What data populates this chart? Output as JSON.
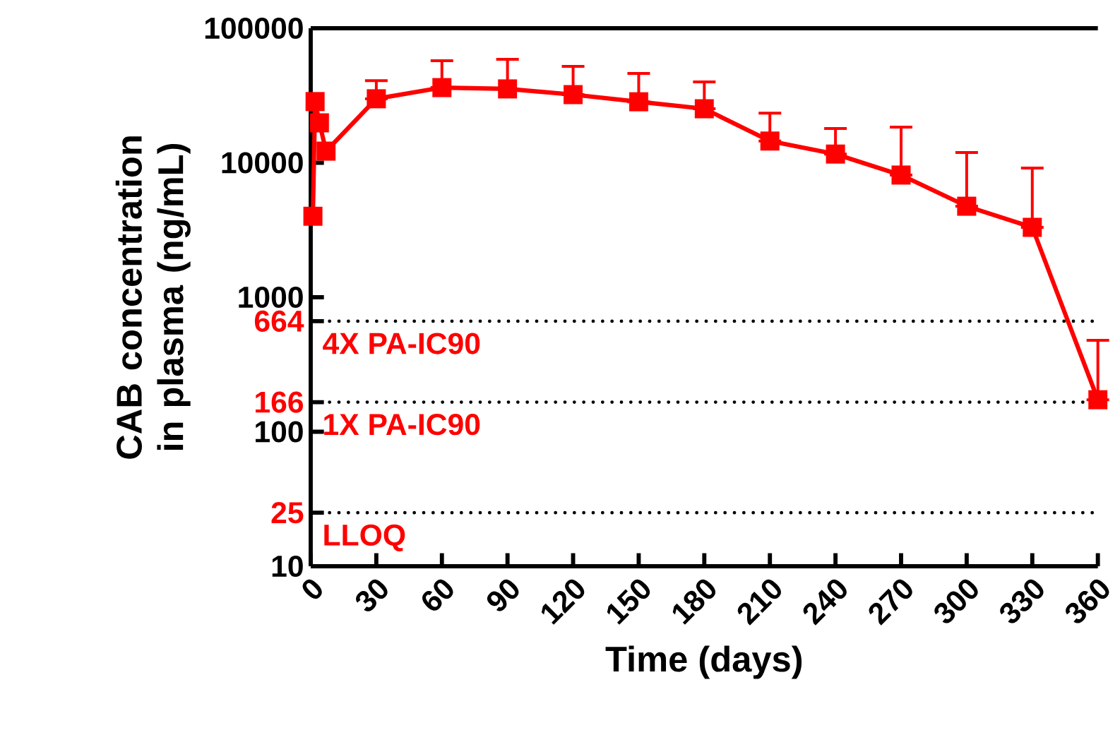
{
  "chart_data": {
    "type": "line",
    "xlabel": "Time (days)",
    "ylabel": "CAB concentration in plasma (ng/mL)",
    "log": "y",
    "marker": "square",
    "line_style": "solid",
    "xlim": [
      0,
      360
    ],
    "xticks": [
      0,
      30,
      60,
      90,
      120,
      150,
      180,
      210,
      240,
      270,
      300,
      330,
      360
    ],
    "ylim": [
      10,
      100000
    ],
    "yticks": [
      10,
      25,
      100,
      166,
      664,
      1000,
      10000,
      100000
    ],
    "series": [
      {
        "color": "#ff0000",
        "x": [
          1,
          2,
          4,
          7,
          30,
          60,
          90,
          120,
          150,
          180,
          210,
          240,
          270,
          300,
          330,
          360
        ],
        "values": [
          4000,
          28500,
          19800,
          12200,
          29900,
          36200,
          35400,
          32100,
          28400,
          25200,
          14500,
          11600,
          8100,
          4750,
          3310,
          173
        ],
        "errors": [
          null,
          null,
          null,
          null,
          [
            29900,
            40800
          ],
          [
            36200,
            57300
          ],
          [
            35400,
            58700
          ],
          [
            32100,
            52100
          ],
          [
            28400,
            46100
          ],
          [
            25200,
            39900
          ],
          [
            14500,
            23400
          ],
          [
            11600,
            18000
          ],
          [
            8100,
            18400
          ],
          [
            4750,
            11900
          ],
          [
            3310,
            9140
          ],
          [
            173,
            479
          ]
        ]
      }
    ],
    "ref_lines": [
      {
        "axis": "y",
        "value": 664,
        "label": "4X PA-IC90",
        "color": "#000000",
        "line_style": "dotted"
      },
      {
        "axis": "y",
        "value": 166,
        "label": "1X PA-IC90",
        "color": "#000000",
        "line_style": "dotted"
      },
      {
        "axis": "y",
        "value": 25,
        "label": "LLOQ",
        "color": "#000000",
        "line_style": "dotted"
      }
    ]
  }
}
